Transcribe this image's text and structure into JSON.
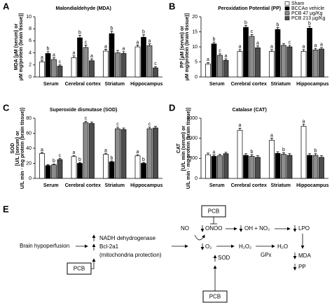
{
  "chart_data": [
    {
      "type": "bar",
      "panel_label": "A",
      "title": "Malondialdehyde (MDA)",
      "ylabel": [
        "MDA [µM (serum) or",
        "µM mg/protein (brain tissue)]"
      ],
      "categories": [
        "Serum",
        "Cerebral cortex",
        "Striatum",
        "Hippocampus"
      ],
      "ylim": [
        0,
        10
      ],
      "yticks": [
        0,
        2,
        4,
        6,
        8,
        10
      ],
      "series": [
        {
          "color": "#ffffff",
          "values": [
            2.5,
            3.2,
            4.3,
            5.0
          ],
          "errors": [
            0.3,
            0.3,
            0.3,
            0.3
          ],
          "letters": [
            "a",
            "a",
            "a",
            "a"
          ]
        },
        {
          "color": "#000000",
          "values": [
            3.9,
            6.5,
            7.2,
            6.6
          ],
          "errors": [
            0.3,
            0.4,
            0.4,
            0.4
          ],
          "letters": [
            "b",
            "b",
            "b",
            "b"
          ]
        },
        {
          "color": "#8c8c8c",
          "values": [
            2.9,
            4.9,
            4.0,
            5.2
          ],
          "errors": [
            0.3,
            0.4,
            0.4,
            0.3
          ],
          "letters": [
            "a",
            "c",
            null,
            "a"
          ]
        },
        {
          "color": "#4d4d4d",
          "values": [
            1.8,
            2.7,
            3.9,
            1.5
          ],
          "errors": [
            0.2,
            0.3,
            0.3,
            0.2
          ],
          "letters": [
            "c",
            "a",
            "a",
            "c"
          ]
        }
      ]
    },
    {
      "type": "bar",
      "panel_label": "B",
      "title": "Peroxidation Potential (PP)",
      "ylabel": [
        "PP [µM (serum) or",
        "µM mg/protein (brain tissue)]"
      ],
      "categories": [
        "Serum",
        "Cerebral cortex",
        "Striatum",
        "Hippocampus"
      ],
      "ylim": [
        0,
        20
      ],
      "yticks": [
        0,
        5,
        10,
        15,
        20
      ],
      "legend": "top-right",
      "series": [
        {
          "name": "Sham",
          "color": "#ffffff",
          "values": [
            4.3,
            8.5,
            8.5,
            8.5
          ],
          "errors": [
            0.5,
            0.6,
            0.6,
            0.6
          ],
          "letters": [
            "a",
            "a",
            "a",
            "a"
          ]
        },
        {
          "name": "BCCAo vehicle",
          "color": "#000000",
          "values": [
            11,
            16.5,
            15.8,
            16.2
          ],
          "errors": [
            0.6,
            0.6,
            0.6,
            0.6
          ],
          "letters": [
            "b",
            "b",
            "b",
            "b"
          ]
        },
        {
          "name": "PCB 47 µg/Kg",
          "color": "#8c8c8c",
          "values": [
            7.2,
            13.5,
            10.5,
            9.0
          ],
          "errors": [
            0.5,
            0.6,
            0.6,
            0.5
          ],
          "letters": [
            "c",
            "c",
            null,
            "a"
          ]
        },
        {
          "name": "PCB 213 µg/Kg",
          "color": "#4d4d4d",
          "values": [
            5.5,
            9.7,
            10.0,
            9.3
          ],
          "errors": [
            0.5,
            0.6,
            0.5,
            0.5
          ],
          "letters": [
            "a",
            "a",
            "c",
            "a"
          ]
        }
      ]
    },
    {
      "type": "bar",
      "panel_label": "C",
      "title": "Superoxide dismutase (SOD)",
      "ylabel": [
        "SOD",
        "[U/L (serum) or",
        "U/L min · mg protein (brain tissue)]"
      ],
      "categories": [
        "Serum",
        "Cerebral cortex",
        "Striatum",
        "Hippocampus"
      ],
      "ylim": [
        0,
        80
      ],
      "yticks": [
        0,
        20,
        40,
        60,
        80
      ],
      "series": [
        {
          "color": "#ffffff",
          "values": [
            33,
            29,
            32,
            30
          ],
          "errors": [
            1.5,
            1.5,
            1.5,
            1.5
          ],
          "letters": [
            "a",
            "a",
            "a",
            "a"
          ]
        },
        {
          "color": "#000000",
          "values": [
            17,
            20,
            22,
            20
          ],
          "errors": [
            1.2,
            1.2,
            1.2,
            1.2
          ],
          "letters": [
            null,
            "b",
            "b",
            "b"
          ]
        },
        {
          "color": "#8c8c8c",
          "values": [
            18,
            74,
            66,
            66
          ],
          "errors": [
            1.2,
            2,
            2,
            2
          ],
          "letters": [
            "b",
            "c",
            "c",
            "c"
          ]
        },
        {
          "color": "#4d4d4d",
          "values": [
            25,
            73,
            65,
            67
          ],
          "errors": [
            1.5,
            2,
            2,
            2
          ],
          "letters": [
            "c",
            null,
            null,
            null
          ]
        }
      ]
    },
    {
      "type": "bar",
      "panel_label": "D",
      "title": "Catalase (CAT)",
      "ylabel": [
        "CAT",
        "[U/L min (serum) or",
        "U/L min · mg protein (brain tissue)]"
      ],
      "categories": [
        "Serum",
        "Cerebral cortex",
        "Striatum",
        "Hippocampus"
      ],
      "ylim": [
        0,
        3000
      ],
      "yticks": [
        0,
        1000,
        2000,
        3000
      ],
      "series": [
        {
          "color": "#ffffff",
          "values": [
            1180,
            2400,
            1900,
            2600
          ],
          "errors": [
            80,
            100,
            100,
            100
          ],
          "letters": [
            null,
            "a",
            "a",
            "a"
          ]
        },
        {
          "color": "#000000",
          "values": [
            1100,
            1150,
            1250,
            1150
          ],
          "errors": [
            70,
            80,
            80,
            80
          ],
          "letters": [
            "a",
            null,
            null,
            null
          ]
        },
        {
          "color": "#8c8c8c",
          "values": [
            1130,
            1100,
            1200,
            1150
          ],
          "errors": [
            70,
            80,
            80,
            80
          ],
          "letters": [
            null,
            "b",
            "b",
            "b"
          ]
        },
        {
          "color": "#4d4d4d",
          "values": [
            1230,
            1050,
            1150,
            1050
          ],
          "errors": [
            70,
            80,
            80,
            80
          ],
          "letters": [
            null,
            null,
            null,
            null
          ]
        }
      ]
    }
  ],
  "diagram": {
    "panel_label": "E",
    "brain": "Brain hypoperfusion",
    "nadh": "NADH dehydrogenase",
    "bcl": "Bcl-2a1",
    "mito": "(mitochondria protection)",
    "pcb_left": "PCB",
    "pcb_top": "PCB",
    "pcb_bottom": "PCB",
    "no": "NO",
    "onoo": "ONOO",
    "o2": "O₂",
    "sod": "SOD",
    "h2o2": "H₂O₂",
    "gpx": "GPx",
    "h2o": "H₂O",
    "oh": "OH + NO₂",
    "lpo": "LPO",
    "mda": "MDA",
    "pp": "PP"
  }
}
